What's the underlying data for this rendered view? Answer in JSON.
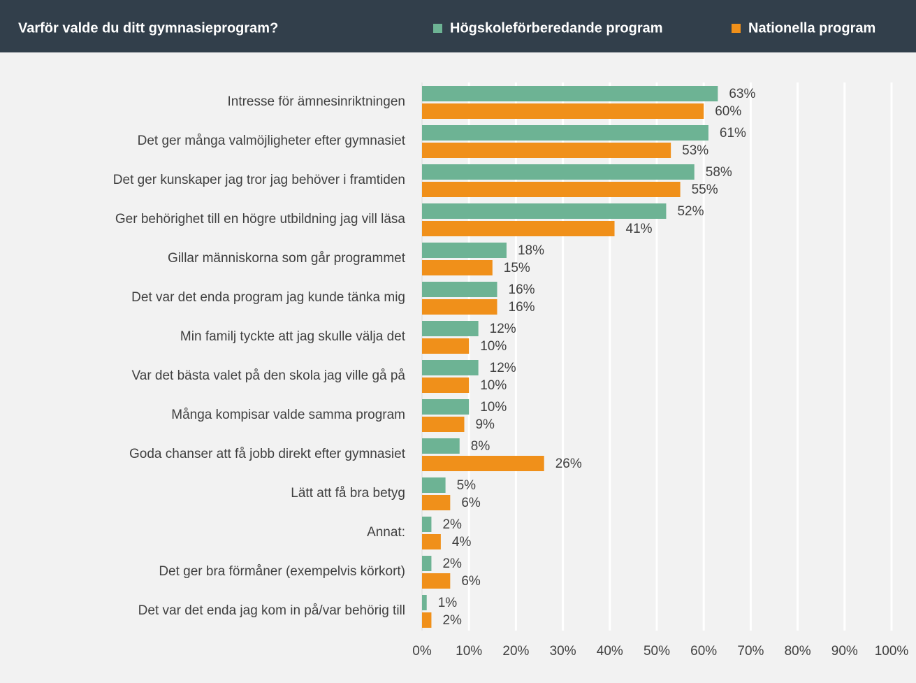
{
  "chart_data": {
    "type": "barh",
    "title": "Varför valde du ditt gymnasieprogram?",
    "categories": [
      "Intresse för ämnesinriktningen",
      "Det ger många valmöjligheter efter gymnasiet",
      "Det ger kunskaper jag tror jag behöver i framtiden",
      "Ger behörighet till en högre utbildning jag vill läsa",
      "Gillar människorna som går programmet",
      "Det var det enda program jag kunde tänka mig",
      "Min familj tyckte att jag skulle välja det",
      "Var det bästa valet på den skola jag ville gå på",
      "Många kompisar valde samma program",
      "Goda chanser att få jobb direkt efter gymnasiet",
      "Lätt att få bra betyg",
      "Annat:",
      "Det ger bra förmåner (exempelvis körkort)",
      "Det var det enda jag kom in på/var behörig till"
    ],
    "series": [
      {
        "name": "Högskoleförberedande program",
        "color": "#6db394",
        "values": [
          63,
          61,
          58,
          52,
          18,
          16,
          12,
          12,
          10,
          8,
          5,
          2,
          2,
          1
        ],
        "value_labels": [
          "63%",
          "61%",
          "58%",
          "52%",
          "18%",
          "16%",
          "12%",
          "12%",
          "10%",
          "8%",
          "5%",
          "2%",
          "2%",
          "1%"
        ]
      },
      {
        "name": "Nationella program",
        "color": "#f0901a",
        "values": [
          60,
          53,
          55,
          41,
          15,
          16,
          10,
          10,
          9,
          26,
          6,
          4,
          6,
          2
        ],
        "value_labels": [
          "60%",
          "53%",
          "55%",
          "41%",
          "15%",
          "16%",
          "10%",
          "10%",
          "9%",
          "26%",
          "6%",
          "4%",
          "6%",
          "2%"
        ]
      }
    ],
    "xlim": [
      0,
      100
    ],
    "xticks": [
      {
        "value": 0,
        "label": "0%"
      },
      {
        "value": 10,
        "label": "10%"
      },
      {
        "value": 20,
        "label": "20%"
      },
      {
        "value": 30,
        "label": "30%"
      },
      {
        "value": 40,
        "label": "40%"
      },
      {
        "value": 50,
        "label": "50%"
      },
      {
        "value": 60,
        "label": "60%"
      },
      {
        "value": 70,
        "label": "70%"
      },
      {
        "value": 80,
        "label": "80%"
      },
      {
        "value": 90,
        "label": "90%"
      },
      {
        "value": 100,
        "label": "100%"
      }
    ],
    "grid": true
  }
}
